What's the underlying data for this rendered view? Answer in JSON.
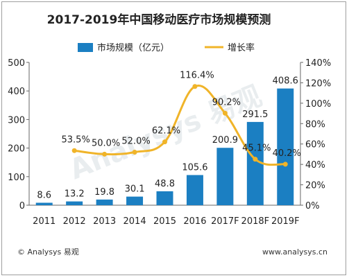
{
  "chart_data": {
    "type": "bar",
    "title": "2017-2019年中国移动医疗市场规模预测",
    "categories": [
      "2011",
      "2012",
      "2013",
      "2014",
      "2015",
      "2016",
      "2017F",
      "2018F",
      "2019F"
    ],
    "series": [
      {
        "name": "市场规模（亿元）",
        "type": "bar",
        "axis": "left",
        "values": [
          8.6,
          13.2,
          19.8,
          30.1,
          48.8,
          105.6,
          200.9,
          291.5,
          408.6
        ],
        "labels": [
          "8.6",
          "13.2",
          "19.8",
          "30.1",
          "48.8",
          "105.6",
          "200.9",
          "291.5",
          "408.6"
        ],
        "color": "#1b7fc2"
      },
      {
        "name": "增长率",
        "type": "line",
        "axis": "right",
        "values": [
          null,
          53.5,
          50.0,
          52.0,
          62.1,
          116.4,
          90.2,
          45.1,
          40.2
        ],
        "labels": [
          "",
          "53.5%",
          "50.0%",
          "52.0%",
          "62.1%",
          "116.4%",
          "90.2%",
          "45.1%",
          "40.2%"
        ],
        "color": "#f0b429"
      }
    ],
    "yaxis_left": {
      "min": 0,
      "max": 500,
      "ticks": [
        "0",
        "100",
        "200",
        "300",
        "400",
        "500"
      ]
    },
    "yaxis_right": {
      "min": 0,
      "max": 140,
      "ticks": [
        "0%",
        "20%",
        "40%",
        "60%",
        "80%",
        "100%",
        "120%",
        "140%"
      ]
    },
    "grid": false,
    "legend_position": "top"
  },
  "footer": {
    "source": "© Analysys 易观",
    "url": "www.analysys.cn"
  },
  "watermark": "Analysys 易观"
}
